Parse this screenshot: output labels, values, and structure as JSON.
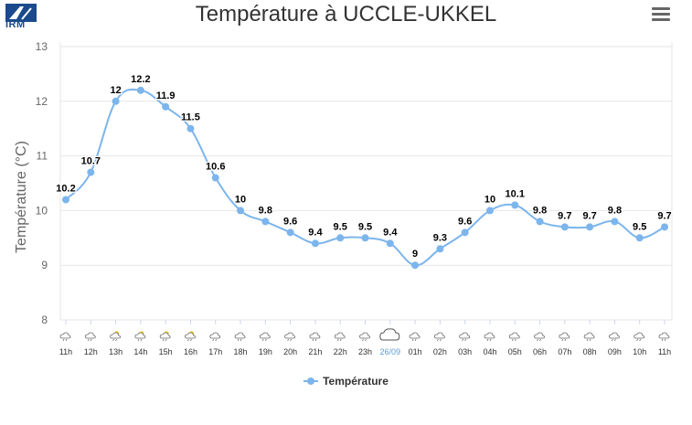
{
  "header": {
    "logo_text": "IRM",
    "title": "Température à UCCLE-UKKEL"
  },
  "colors": {
    "series": "#7cb5ec",
    "date_label": "#5b9bd5",
    "grid": "#e6e6e6",
    "axis_text": "#666666"
  },
  "icons": {
    "menu": "hamburger-menu-icon",
    "weather": "weather-symbol-icon",
    "logo": "irm-logo-icon"
  },
  "chart_data": {
    "type": "line",
    "title": "Température à UCCLE-UKKEL",
    "ylabel": "Température (°C)",
    "xlabel": "",
    "ylim": [
      8,
      13
    ],
    "yticks": [
      8,
      9,
      10,
      11,
      12,
      13
    ],
    "categories": [
      "11h",
      "12h",
      "13h",
      "14h",
      "15h",
      "16h",
      "17h",
      "18h",
      "19h",
      "20h",
      "21h",
      "22h",
      "23h",
      "26/09",
      "01h",
      "02h",
      "03h",
      "04h",
      "05h",
      "06h",
      "07h",
      "08h",
      "09h",
      "10h",
      "11h"
    ],
    "highlight_category": "26/09",
    "series": [
      {
        "name": "Température",
        "values": [
          10.2,
          10.7,
          12,
          12.2,
          11.9,
          11.5,
          10.6,
          10,
          9.8,
          9.6,
          9.4,
          9.5,
          9.5,
          9.4,
          9,
          9.3,
          9.6,
          10,
          10.1,
          9.8,
          9.7,
          9.7,
          9.8,
          9.5,
          9.7
        ]
      }
    ],
    "weather_icons": [
      "cloud-rain",
      "cloud-rain",
      "sun-cloud",
      "sun-cloud",
      "sun-cloud",
      "sun-cloud",
      "cloud-rain",
      "cloud-rain",
      "cloud-rain",
      "cloud-rain",
      "cloud-rain",
      "cloud-rain",
      "cloud-rain",
      "cloud-large",
      "cloud-rain",
      "cloud-rain",
      "cloud-rain",
      "cloud-rain",
      "cloud-rain",
      "cloud-rain",
      "cloud-rain",
      "cloud-rain",
      "cloud-rain",
      "cloud-rain",
      "cloud-rain"
    ],
    "grid": true,
    "legend": {
      "position": "bottom-center",
      "items": [
        "Température"
      ]
    }
  }
}
